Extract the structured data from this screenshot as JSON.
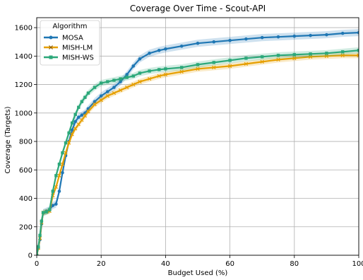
{
  "chart_data": {
    "type": "line",
    "title": "Coverage Over Time - Scout-API",
    "xlabel": "Budget Used (%)",
    "ylabel": "Coverage (Targets)",
    "xlim": [
      0,
      100
    ],
    "ylim": [
      0,
      1670
    ],
    "xticks": [
      0,
      20,
      40,
      60,
      80,
      100
    ],
    "yticks": [
      0,
      200,
      400,
      600,
      800,
      1000,
      1200,
      1400,
      1600
    ],
    "grid": true,
    "legend": {
      "title": "Algorithm",
      "placement": "top-left"
    },
    "series": [
      {
        "name": "MOSA",
        "color": "#1f77b4",
        "marker": "circle",
        "ci_halfwidth": 25,
        "x": [
          0,
          0.5,
          1,
          1.5,
          2,
          3,
          4,
          5,
          6,
          7,
          8,
          9,
          10,
          11,
          12,
          13,
          14,
          15,
          16,
          18,
          20,
          22,
          24,
          26,
          28,
          30,
          32,
          35,
          38,
          40,
          45,
          50,
          55,
          60,
          65,
          70,
          75,
          80,
          85,
          90,
          95,
          100
        ],
        "y": [
          0,
          50,
          110,
          220,
          300,
          310,
          320,
          350,
          360,
          450,
          580,
          700,
          800,
          880,
          940,
          970,
          985,
          1000,
          1030,
          1080,
          1120,
          1150,
          1180,
          1220,
          1270,
          1330,
          1380,
          1420,
          1440,
          1450,
          1470,
          1490,
          1500,
          1510,
          1520,
          1530,
          1535,
          1540,
          1545,
          1550,
          1560,
          1565
        ]
      },
      {
        "name": "MISH-LM",
        "color": "#e69f00",
        "marker": "x",
        "ci_halfwidth": 20,
        "x": [
          0,
          0.5,
          1,
          1.5,
          2,
          3,
          4,
          5,
          6,
          7,
          8,
          9,
          10,
          11,
          12,
          13,
          14,
          15,
          16,
          18,
          20,
          22,
          24,
          26,
          28,
          30,
          32,
          35,
          38,
          40,
          45,
          50,
          55,
          60,
          65,
          70,
          75,
          80,
          85,
          90,
          95,
          100
        ],
        "y": [
          0,
          50,
          120,
          230,
          300,
          305,
          310,
          420,
          480,
          560,
          640,
          720,
          790,
          850,
          890,
          920,
          950,
          980,
          1010,
          1060,
          1090,
          1120,
          1140,
          1160,
          1180,
          1200,
          1220,
          1240,
          1260,
          1270,
          1290,
          1310,
          1320,
          1330,
          1345,
          1360,
          1375,
          1385,
          1395,
          1400,
          1405,
          1405
        ]
      },
      {
        "name": "MISH-WS",
        "color": "#2ca87a",
        "marker": "square",
        "ci_halfwidth": 22,
        "x": [
          0,
          0.5,
          1,
          1.5,
          2,
          3,
          4,
          5,
          6,
          7,
          8,
          9,
          10,
          11,
          12,
          13,
          14,
          15,
          16,
          18,
          20,
          22,
          24,
          26,
          28,
          30,
          32,
          35,
          38,
          40,
          45,
          50,
          55,
          60,
          65,
          70,
          75,
          80,
          85,
          90,
          95,
          100
        ],
        "y": [
          0,
          60,
          140,
          240,
          300,
          305,
          320,
          450,
          560,
          640,
          720,
          790,
          860,
          930,
          990,
          1040,
          1080,
          1110,
          1140,
          1180,
          1210,
          1220,
          1230,
          1240,
          1250,
          1260,
          1280,
          1295,
          1305,
          1310,
          1320,
          1340,
          1355,
          1370,
          1385,
          1395,
          1405,
          1410,
          1415,
          1420,
          1430,
          1440
        ]
      }
    ]
  }
}
